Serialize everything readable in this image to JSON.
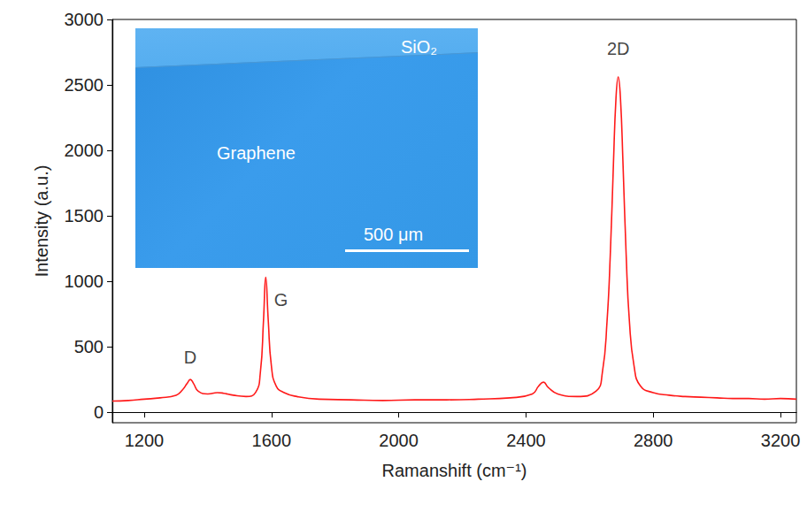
{
  "chart_data": {
    "type": "line",
    "x_label": "Ramanshift (cm⁻¹)",
    "y_label": "Intensity (a.u.)",
    "color": "#ff1a1a",
    "grid": false,
    "xlim": [
      1100,
      3250
    ],
    "xticks": [
      1200,
      1600,
      2000,
      2400,
      2800,
      3200
    ],
    "ylim": [
      -80,
      3000
    ],
    "yticks": [
      0,
      500,
      1000,
      1500,
      2000,
      2500,
      3000
    ],
    "x": [
      1100,
      1150,
      1200,
      1250,
      1300,
      1320,
      1335,
      1345,
      1355,
      1370,
      1400,
      1430,
      1450,
      1480,
      1520,
      1550,
      1565,
      1575,
      1582,
      1590,
      1600,
      1615,
      1640,
      1680,
      1750,
      1850,
      1950,
      2050,
      2150,
      2250,
      2350,
      2420,
      2440,
      2455,
      2470,
      2500,
      2560,
      2620,
      2640,
      2655,
      2665,
      2675,
      2683,
      2690,
      2697,
      2705,
      2715,
      2725,
      2740,
      2760,
      2800,
      2850,
      2900,
      2950,
      3000,
      3050,
      3100,
      3150,
      3200,
      3250
    ],
    "values": [
      85,
      90,
      100,
      110,
      130,
      170,
      220,
      250,
      220,
      160,
      140,
      150,
      145,
      130,
      120,
      150,
      300,
      700,
      1030,
      700,
      350,
      200,
      150,
      120,
      100,
      95,
      90,
      95,
      95,
      100,
      110,
      140,
      200,
      230,
      190,
      140,
      120,
      160,
      300,
      700,
      1200,
      1900,
      2400,
      2560,
      2400,
      1900,
      1200,
      700,
      350,
      200,
      150,
      130,
      120,
      115,
      110,
      105,
      105,
      100,
      105,
      100
    ],
    "annotations": [
      {
        "text": "D",
        "x": 1345,
        "y": 420
      },
      {
        "text": "G",
        "x": 1630,
        "y": 860
      },
      {
        "text": "2D",
        "x": 2690,
        "y": 2780
      }
    ],
    "inset": {
      "region_top": "SiO₂",
      "region_main": "Graphene",
      "scale_bar": "500 μm"
    }
  }
}
